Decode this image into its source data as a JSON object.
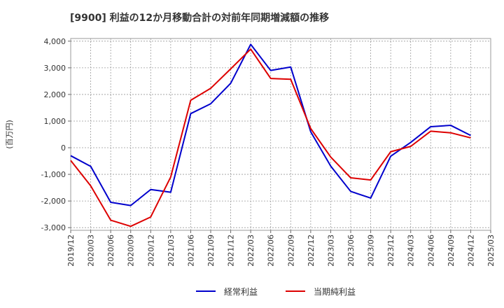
{
  "chart_data": {
    "type": "line",
    "title": "[9900]  利益の12か月移動合計の対前年同期増減額の推移",
    "ylabel": "(百万円)",
    "xlabel": "",
    "ylim": [
      -3100,
      4100
    ],
    "yticks": [
      -3000,
      -2000,
      -1000,
      0,
      1000,
      2000,
      3000,
      4000
    ],
    "ytick_labels": [
      "-3,000",
      "-2,000",
      "-1,000",
      "0",
      "1,000",
      "2,000",
      "3,000",
      "4,000"
    ],
    "categories": [
      "2019/12",
      "2020/03",
      "2020/06",
      "2020/09",
      "2020/12",
      "2021/03",
      "2021/06",
      "2021/09",
      "2021/12",
      "2022/03",
      "2022/06",
      "2022/09",
      "2022/12",
      "2023/03",
      "2023/06",
      "2023/09",
      "2023/12",
      "2024/03",
      "2024/06",
      "2024/09",
      "2024/12",
      "2025/03"
    ],
    "grid": true,
    "legend_position": "bottom",
    "series": [
      {
        "name": "経常利益",
        "color": "#0000cc",
        "values": [
          -300,
          -700,
          -2050,
          -2170,
          -1570,
          -1670,
          1280,
          1650,
          2420,
          3880,
          2900,
          3030,
          600,
          -690,
          -1640,
          -1890,
          -320,
          200,
          790,
          840,
          460,
          null
        ]
      },
      {
        "name": "当期純利益",
        "color": "#dd0000",
        "values": [
          -480,
          -1430,
          -2720,
          -2950,
          -2600,
          -1100,
          1780,
          2230,
          2960,
          3700,
          2600,
          2570,
          720,
          -350,
          -1130,
          -1210,
          -150,
          50,
          620,
          560,
          370,
          null
        ]
      }
    ]
  }
}
